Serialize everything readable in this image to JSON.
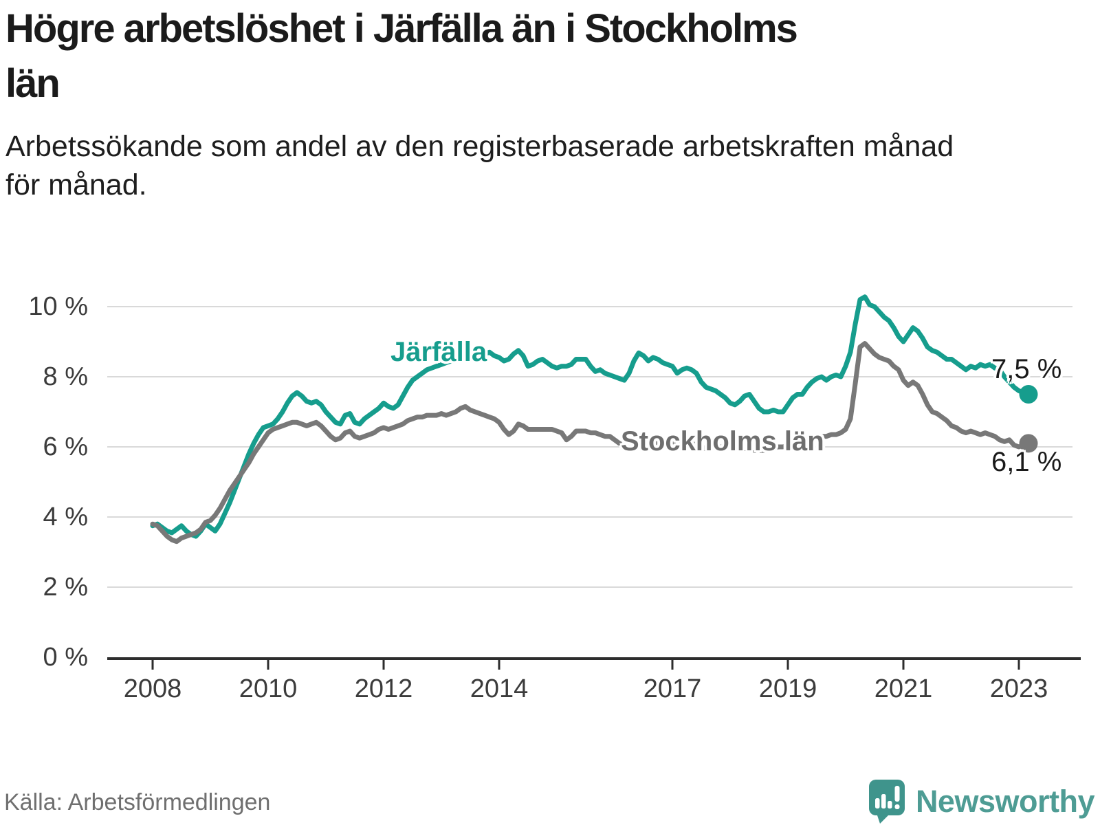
{
  "header": {
    "title": "Högre arbetslöshet i Järfälla än i Stockholms\nlän",
    "subtitle": "Arbetssökande som andel av den registerbaserade arbetskraften månad\nför månad."
  },
  "footer": {
    "source": "Källa: Arbetsförmedlingen",
    "brand": "Newsworthy"
  },
  "colors": {
    "jarfalla": "#169d8d",
    "stockholm": "#787878",
    "grid": "#d9d9d9",
    "axis": "#2d2d2d",
    "logo_bubble": "#3f948c",
    "logo_text": "#4e9c94"
  },
  "chart_data": {
    "type": "line",
    "title": "Högre arbetslöshet i Järfälla än i Stockholms län",
    "subtitle": "Arbetssökande som andel av den registerbaserade arbetskraften månad för månad.",
    "unit": "%",
    "frequency": "monthly",
    "x_start": "2008-01",
    "x_end": "2023-03",
    "ylim": [
      0,
      10.6
    ],
    "grid": true,
    "legend_position": "inline-labels",
    "y_axis": {
      "tick_values": [
        0,
        2,
        4,
        6,
        8,
        10
      ],
      "tick_labels": [
        "0 %",
        "2 %",
        "4 %",
        "6 %",
        "8 %",
        "10 %"
      ]
    },
    "x_axis": {
      "tick_years": [
        2008,
        2010,
        2012,
        2014,
        2017,
        2019,
        2021,
        2023
      ],
      "tick_labels": [
        "2008",
        "2010",
        "2012",
        "2014",
        "2017",
        "2019",
        "2021",
        "2023"
      ]
    },
    "series": [
      {
        "name": "Järfälla",
        "color": "#169d8d",
        "end_value": 7.5,
        "end_label": "7,5 %",
        "values": [
          3.75,
          3.8,
          3.7,
          3.6,
          3.55,
          3.65,
          3.75,
          3.6,
          3.5,
          3.45,
          3.6,
          3.8,
          3.7,
          3.6,
          3.8,
          4.1,
          4.4,
          4.75,
          5.1,
          5.45,
          5.8,
          6.1,
          6.35,
          6.55,
          6.6,
          6.65,
          6.8,
          7.0,
          7.25,
          7.45,
          7.55,
          7.45,
          7.3,
          7.25,
          7.3,
          7.2,
          7.0,
          6.85,
          6.7,
          6.65,
          6.9,
          6.95,
          6.7,
          6.65,
          6.8,
          6.9,
          7.0,
          7.1,
          7.25,
          7.15,
          7.1,
          7.2,
          7.45,
          7.7,
          7.9,
          8.0,
          8.1,
          8.2,
          8.25,
          8.3,
          8.35,
          8.4,
          8.45,
          8.5,
          8.55,
          8.6,
          8.6,
          8.65,
          8.6,
          8.65,
          8.7,
          8.6,
          8.55,
          8.45,
          8.5,
          8.65,
          8.75,
          8.6,
          8.3,
          8.35,
          8.45,
          8.5,
          8.4,
          8.3,
          8.25,
          8.3,
          8.3,
          8.35,
          8.5,
          8.5,
          8.5,
          8.3,
          8.15,
          8.2,
          8.1,
          8.05,
          8.0,
          7.95,
          7.9,
          8.1,
          8.45,
          8.68,
          8.6,
          8.45,
          8.55,
          8.5,
          8.4,
          8.35,
          8.3,
          8.1,
          8.2,
          8.25,
          8.2,
          8.1,
          7.85,
          7.7,
          7.65,
          7.6,
          7.5,
          7.4,
          7.25,
          7.2,
          7.3,
          7.45,
          7.5,
          7.3,
          7.1,
          7.0,
          7.0,
          7.05,
          7.0,
          7.0,
          7.2,
          7.4,
          7.5,
          7.5,
          7.7,
          7.85,
          7.95,
          8.0,
          7.9,
          8.0,
          8.05,
          8.0,
          8.3,
          8.7,
          9.5,
          10.2,
          10.28,
          10.05,
          10.0,
          9.85,
          9.7,
          9.6,
          9.4,
          9.15,
          9.0,
          9.2,
          9.4,
          9.3,
          9.1,
          8.85,
          8.75,
          8.7,
          8.6,
          8.5,
          8.5,
          8.4,
          8.3,
          8.2,
          8.3,
          8.25,
          8.35,
          8.3,
          8.35,
          8.25,
          8.2,
          8.0,
          7.85,
          7.7,
          7.6,
          7.55,
          7.5
        ]
      },
      {
        "name": "Stockholms län",
        "color": "#787878",
        "end_value": 6.1,
        "end_label": "6,1 %",
        "values": [
          3.8,
          3.75,
          3.6,
          3.45,
          3.35,
          3.3,
          3.4,
          3.45,
          3.5,
          3.55,
          3.65,
          3.85,
          3.9,
          4.05,
          4.25,
          4.5,
          4.75,
          4.95,
          5.15,
          5.35,
          5.55,
          5.8,
          6.0,
          6.2,
          6.4,
          6.5,
          6.55,
          6.6,
          6.65,
          6.7,
          6.7,
          6.65,
          6.6,
          6.65,
          6.7,
          6.6,
          6.45,
          6.3,
          6.2,
          6.25,
          6.4,
          6.45,
          6.3,
          6.25,
          6.3,
          6.35,
          6.4,
          6.5,
          6.55,
          6.5,
          6.55,
          6.6,
          6.65,
          6.75,
          6.8,
          6.85,
          6.85,
          6.9,
          6.9,
          6.9,
          6.95,
          6.9,
          6.95,
          7.0,
          7.1,
          7.15,
          7.05,
          7.0,
          6.95,
          6.9,
          6.85,
          6.8,
          6.7,
          6.5,
          6.35,
          6.45,
          6.65,
          6.6,
          6.5,
          6.5,
          6.5,
          6.5,
          6.5,
          6.5,
          6.45,
          6.4,
          6.2,
          6.3,
          6.45,
          6.45,
          6.45,
          6.4,
          6.4,
          6.35,
          6.3,
          6.3,
          6.2,
          6.1,
          6.05,
          6.1,
          6.2,
          6.25,
          6.2,
          6.15,
          6.15,
          6.1,
          6.1,
          6.1,
          6.15,
          6.1,
          6.1,
          6.1,
          6.1,
          6.05,
          6.0,
          5.95,
          6.0,
          6.0,
          6.0,
          6.0,
          6.0,
          5.95,
          5.95,
          5.95,
          5.95,
          5.9,
          5.9,
          5.9,
          5.95,
          5.95,
          6.0,
          6.0,
          6.05,
          6.1,
          6.1,
          6.15,
          6.2,
          6.25,
          6.3,
          6.3,
          6.3,
          6.35,
          6.35,
          6.4,
          6.5,
          6.8,
          7.8,
          8.85,
          8.95,
          8.8,
          8.65,
          8.55,
          8.5,
          8.45,
          8.3,
          8.2,
          7.9,
          7.75,
          7.85,
          7.75,
          7.5,
          7.2,
          7.0,
          6.95,
          6.85,
          6.75,
          6.6,
          6.55,
          6.45,
          6.4,
          6.45,
          6.4,
          6.35,
          6.4,
          6.35,
          6.3,
          6.2,
          6.15,
          6.2,
          6.05,
          6.0,
          6.05,
          6.1
        ]
      }
    ]
  }
}
